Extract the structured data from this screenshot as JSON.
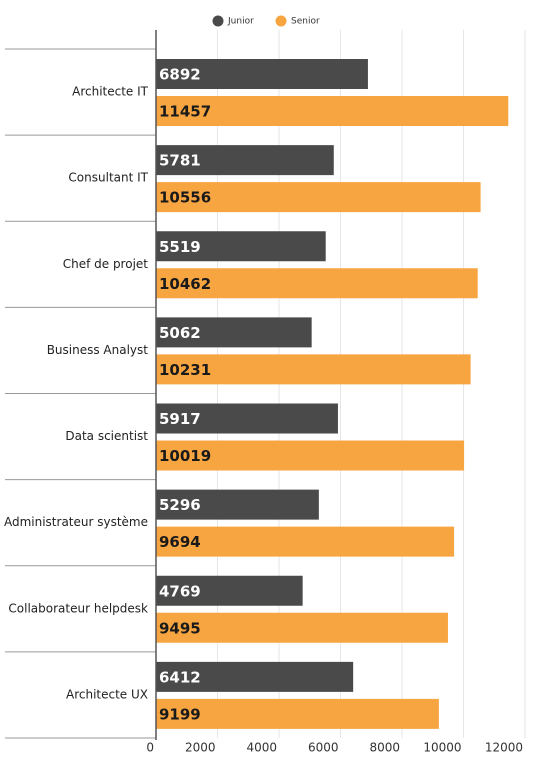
{
  "chart_data": {
    "type": "bar",
    "orientation": "horizontal",
    "categories": [
      "Architecte IT",
      "Consultant IT",
      "Chef de projet",
      "Business Analyst",
      "Data scientist",
      "Administrateur système",
      "Collaborateur helpdesk",
      "Architecte UX"
    ],
    "series": [
      {
        "name": "Junior",
        "color": "#4a4a4a",
        "label_color": "#ffffff",
        "values": [
          6892,
          5781,
          5519,
          5062,
          5917,
          5296,
          4769,
          6412
        ]
      },
      {
        "name": "Senior",
        "color": "#f7a540",
        "label_color": "#1a1a1a",
        "values": [
          11457,
          10556,
          10462,
          10231,
          10019,
          9694,
          9495,
          9199
        ]
      }
    ],
    "xlim": [
      0,
      12000
    ],
    "xticks": [
      0,
      2000,
      4000,
      6000,
      8000,
      10000,
      12000
    ],
    "grid": true,
    "legend": "top"
  }
}
